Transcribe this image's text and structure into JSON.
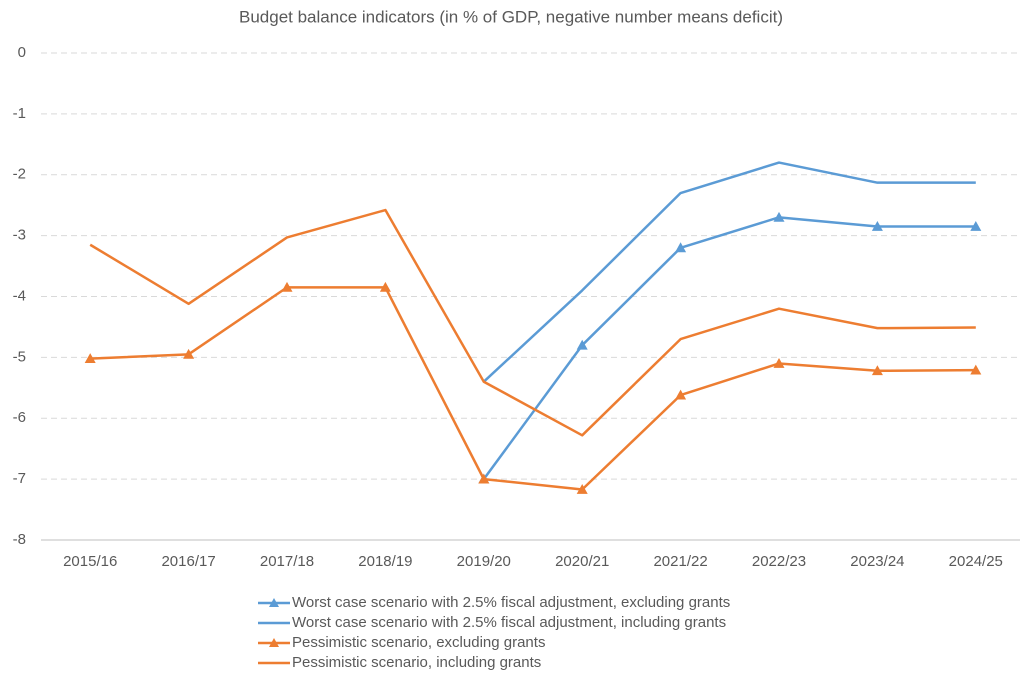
{
  "chart_data": {
    "type": "line",
    "title": "Budget balance indicators (in % of GDP, negative number means deficit)",
    "categories": [
      "2015/16",
      "2016/17",
      "2017/18",
      "2018/19",
      "2019/20",
      "2020/21",
      "2021/22",
      "2022/23",
      "2023/24",
      "2024/25"
    ],
    "series": [
      {
        "name": "Worst case scenario with 2.5% fiscal adjustment, excluding grants",
        "color": "#5b9bd5",
        "marker": "triangle",
        "values": [
          null,
          null,
          null,
          null,
          -7.0,
          -4.8,
          -3.2,
          -2.7,
          -2.85,
          -2.85
        ]
      },
      {
        "name": "Worst case scenario with 2.5% fiscal adjustment, including grants",
        "color": "#5b9bd5",
        "marker": "none",
        "values": [
          null,
          null,
          null,
          null,
          -5.4,
          -3.9,
          -2.3,
          -1.8,
          -2.13,
          -2.13
        ]
      },
      {
        "name": "Pessimistic scenario, excluding grants",
        "color": "#ed7d31",
        "marker": "triangle",
        "values": [
          -5.02,
          -4.95,
          -3.85,
          -3.85,
          -7.0,
          -7.17,
          -5.62,
          -5.1,
          -5.22,
          -5.21
        ]
      },
      {
        "name": "Pessimistic scenario, including grants",
        "color": "#ed7d31",
        "marker": "none",
        "values": [
          -3.15,
          -4.12,
          -3.03,
          -2.58,
          -5.4,
          -6.28,
          -4.7,
          -4.2,
          -4.52,
          -4.51
        ]
      }
    ],
    "ylim": [
      -8,
      0
    ],
    "yticks": [
      0,
      -1,
      -2,
      -3,
      -4,
      -5,
      -6,
      -7,
      -8
    ],
    "grid": true,
    "legend": "bottom"
  }
}
